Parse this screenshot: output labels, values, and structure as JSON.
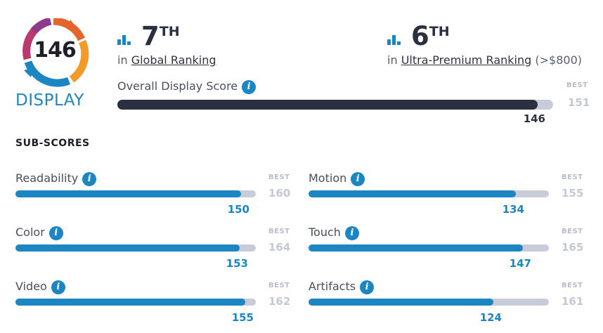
{
  "logo": {
    "score": "146",
    "label": "DISPLAY"
  },
  "colors": {
    "accent": "#1b86c2",
    "dark": "#2b3040",
    "track": "#c8ccd8",
    "best": "#c4c8d3"
  },
  "global_rank": {
    "icon": "bar-chart-icon",
    "rank": "7",
    "suffix": "TH",
    "prefix": "in",
    "link": "Global Ranking",
    "extra": ""
  },
  "premium_rank": {
    "icon": "bar-chart-icon",
    "rank": "6",
    "suffix": "TH",
    "prefix": "in",
    "link": "Ultra-Premium Ranking",
    "extra": "(>$800)"
  },
  "overall": {
    "label": "Overall Display Score",
    "info_icon": "i",
    "best_label": "BEST",
    "best": 151,
    "score": 146
  },
  "subscores_title": "SUB-SCORES",
  "subscores": [
    {
      "name": "Readability",
      "info_icon": "i",
      "best_label": "BEST",
      "best": 160,
      "score": 150,
      "fill": 0.938
    },
    {
      "name": "Motion",
      "info_icon": "i",
      "best_label": "BEST",
      "best": 155,
      "score": 134,
      "fill": 0.864
    },
    {
      "name": "Color",
      "info_icon": "i",
      "best_label": "BEST",
      "best": 164,
      "score": 153,
      "fill": 0.933
    },
    {
      "name": "Touch",
      "info_icon": "i",
      "best_label": "BEST",
      "best": 165,
      "score": 147,
      "fill": 0.891
    },
    {
      "name": "Video",
      "info_icon": "i",
      "best_label": "BEST",
      "best": 162,
      "score": 155,
      "fill": 0.957
    },
    {
      "name": "Artifacts",
      "info_icon": "i",
      "best_label": "BEST",
      "best": 161,
      "score": 124,
      "fill": 0.77
    }
  ]
}
